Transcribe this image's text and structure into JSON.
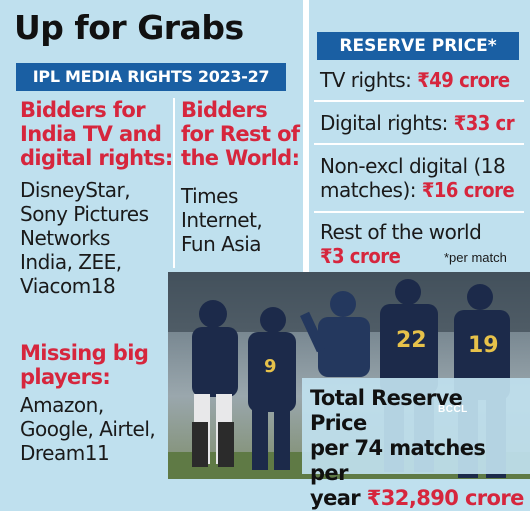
{
  "title": "Up for Grabs",
  "subtitle": "IPL MEDIA RIGHTS 2023-27",
  "india": {
    "heading": "Bidders for\nIndia TV and\ndigital rights:",
    "bidders": "DisneyStar,\nSony Pictures\nNetworks\nIndia, ZEE,\nViacom18"
  },
  "row": {
    "heading": "Bidders\nfor Rest of\nthe World:",
    "bidders": "Times\nInternet,\nFun Asia"
  },
  "missing": {
    "heading": "Missing big\nplayers:",
    "players": "Amazon,\nGoogle, Airtel,\nDream11"
  },
  "reserve": {
    "header": "RESERVE PRICE*",
    "tv_label": "TV rights: ",
    "tv_amount": "₹49 crore",
    "digital_label": "Digital rights: ",
    "digital_amount": "₹33 cr",
    "nonexcl_label_1": "Non-excl digital (18",
    "nonexcl_label_2": "matches): ",
    "nonexcl_amount": "₹16 crore",
    "row_label": "Rest of the world",
    "row_amount": "₹3 crore",
    "footnote": "*per match"
  },
  "total": {
    "line1": "Total Reserve Price",
    "line2": "per 74 matches per",
    "line3": "year ",
    "amount": "₹32,890 crore"
  },
  "watermark": "BCCL",
  "jerseys": [
    "9",
    "22",
    "19"
  ],
  "colors": {
    "background": "#bfe0ee",
    "accent_blue": "#1a5fa3",
    "accent_red": "#d6263d",
    "jersey_navy": "#1c2a4a"
  }
}
